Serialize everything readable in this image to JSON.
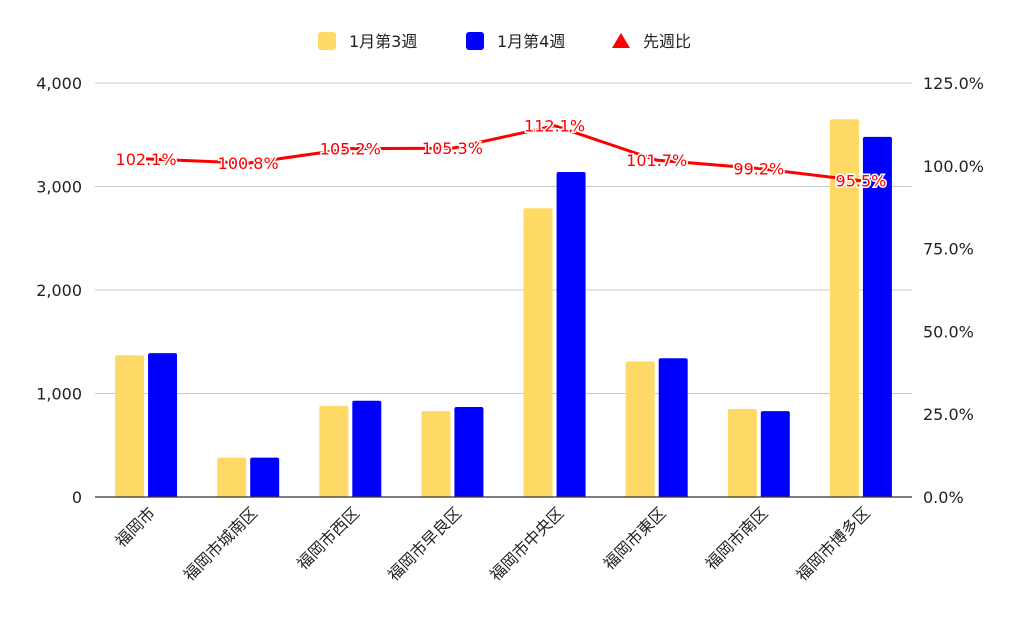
{
  "chart_data": {
    "type": "bar",
    "categories": [
      "福岡市",
      "福岡市城南区",
      "福岡市西区",
      "福岡市早良区",
      "福岡市中央区",
      "福岡市東区",
      "福岡市南区",
      "福岡市博多区"
    ],
    "series": [
      {
        "name": "1月第3週",
        "values": [
          1370,
          380,
          880,
          830,
          2790,
          1310,
          850,
          3650
        ],
        "color": "#ffd966",
        "axis": "left"
      },
      {
        "name": "1月第4週",
        "values": [
          1390,
          380,
          930,
          870,
          3140,
          1340,
          830,
          3480
        ],
        "color": "#0000ff",
        "axis": "left"
      }
    ],
    "line_series": {
      "name": "先週比",
      "values": [
        102.1,
        100.8,
        105.2,
        105.3,
        112.1,
        101.7,
        99.2,
        95.5
      ],
      "labels": [
        "102.1%",
        "100.8%",
        "105.2%",
        "105.3%",
        "112.1%",
        "101.7%",
        "99.2%",
        "95.5%"
      ],
      "color": "#ff0000",
      "axis": "right"
    },
    "y_left": {
      "ylim": [
        0,
        4000
      ],
      "ticks": [
        0,
        1000,
        2000,
        3000,
        4000
      ],
      "tick_labels": [
        "0",
        "1,000",
        "2,000",
        "3,000",
        "4,000"
      ]
    },
    "y_right": {
      "ylim": [
        0,
        125
      ],
      "ticks": [
        0,
        25,
        50,
        75,
        100,
        125
      ],
      "tick_labels": [
        "0.0%",
        "25.0%",
        "50.0%",
        "75.0%",
        "100.0%",
        "125.0%"
      ]
    },
    "grid": true,
    "legend": "top-center",
    "title": "",
    "xlabel": "",
    "ylabel": ""
  }
}
